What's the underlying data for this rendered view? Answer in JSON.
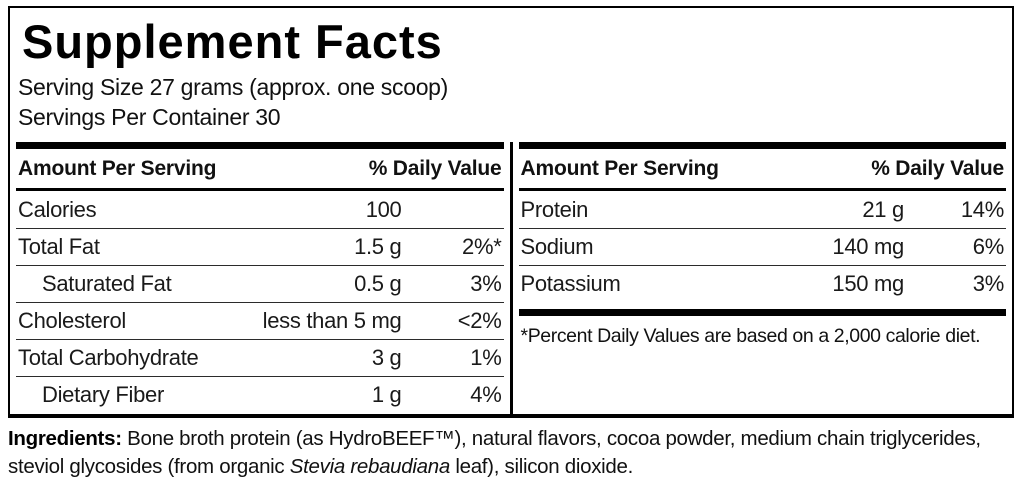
{
  "label": {
    "title": "Supplement Facts",
    "serving_size": "Serving Size 27 grams (approx. one scoop)",
    "servings_per_container": "Servings Per Container 30"
  },
  "left_table": {
    "header": {
      "amount": "Amount Per Serving",
      "dv": "% Daily Value"
    },
    "rows": [
      {
        "name": "Calories",
        "amount": "100",
        "dv": ""
      },
      {
        "name": "Total Fat",
        "amount": "1.5 g",
        "dv": "2%*"
      },
      {
        "name": "Saturated Fat",
        "amount": "0.5 g",
        "dv": "3%"
      },
      {
        "name": "Cholesterol",
        "amount": "less than 5 mg",
        "dv": "<2%"
      },
      {
        "name": "Total Carbohydrate",
        "amount": "3 g",
        "dv": "1%"
      },
      {
        "name": "Dietary Fiber",
        "amount": "1 g",
        "dv": "4%"
      }
    ]
  },
  "right_table": {
    "header": {
      "amount": "Amount Per Serving",
      "dv": "% Daily Value"
    },
    "rows": [
      {
        "name": "Protein",
        "amount": "21 g",
        "dv": "14%"
      },
      {
        "name": "Sodium",
        "amount": "140 mg",
        "dv": "6%"
      },
      {
        "name": "Potassium",
        "amount": "150 mg",
        "dv": "3%"
      }
    ],
    "footnote": "*Percent Daily Values are based on a 2,000 calorie diet."
  },
  "ingredients": {
    "label": "Ingredients:",
    "line1": " Bone broth protein (as HydroBEEF™), natural flavors, cocoa powder, medium chain triglycerides,",
    "line2_before_italic": "steviol glycosides (from organic ",
    "italic": "Stevia rebaudiana",
    "line2_after_italic": " leaf), silicon dioxide."
  },
  "colors": {
    "text": "#000000",
    "background": "#ffffff",
    "rule": "#000000"
  }
}
